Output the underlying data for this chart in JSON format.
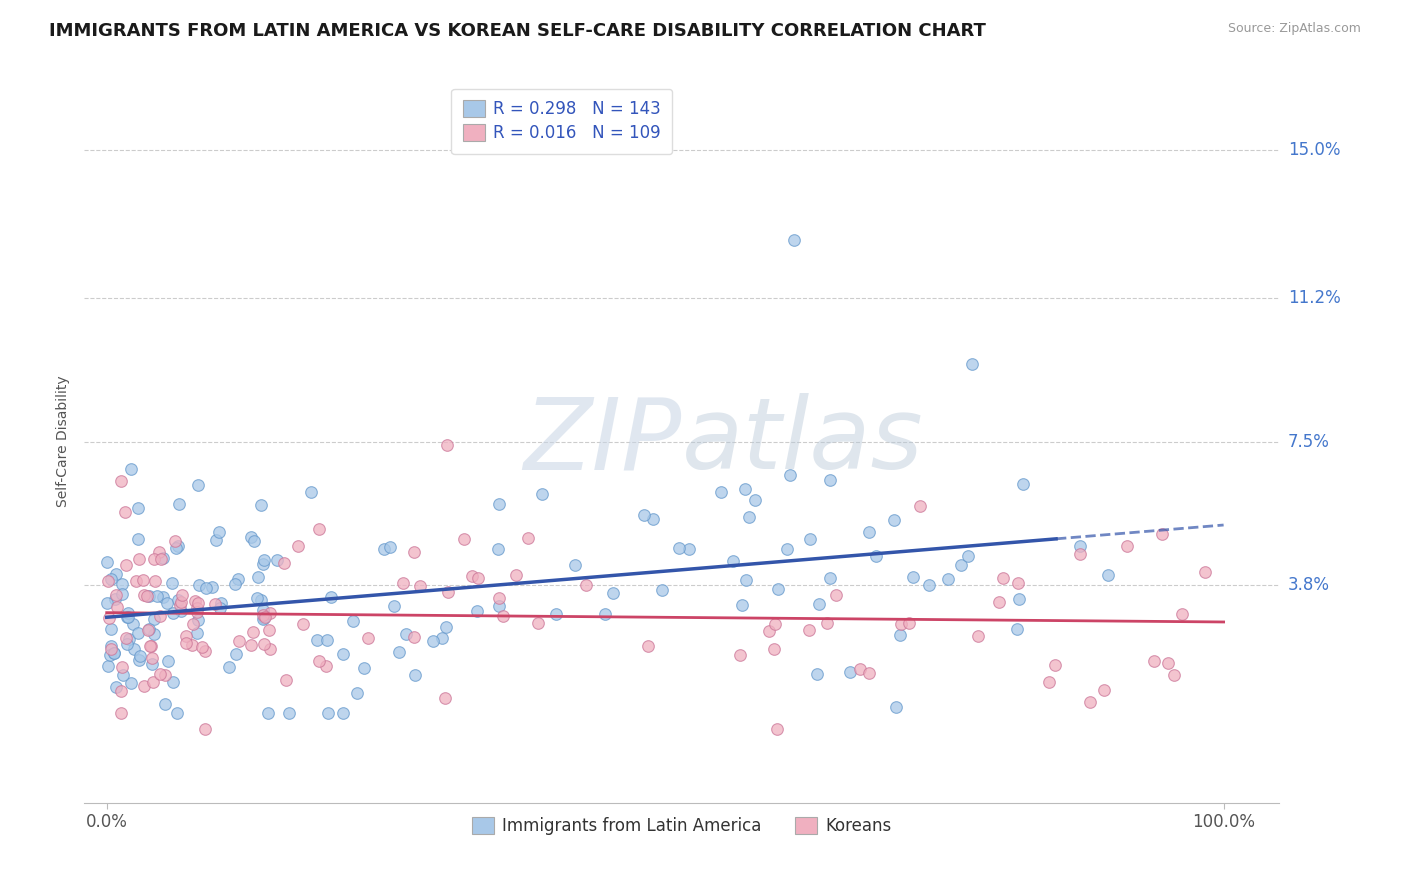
{
  "title": "IMMIGRANTS FROM LATIN AMERICA VS KOREAN SELF-CARE DISABILITY CORRELATION CHART",
  "source": "Source: ZipAtlas.com",
  "ylabel": "Self-Care Disability",
  "legend_label1": "Immigrants from Latin America",
  "legend_label2": "Koreans",
  "R1": 0.298,
  "N1": 143,
  "R2": 0.016,
  "N2": 109,
  "color1_face": "#a8c8e8",
  "color1_edge": "#6699cc",
  "color2_face": "#f0b0c0",
  "color2_edge": "#cc7799",
  "line_color1": "#3355aa",
  "line_color2": "#cc4466",
  "ytick_labels": [
    "15.0%",
    "11.2%",
    "7.5%",
    "3.8%"
  ],
  "ytick_values": [
    0.15,
    0.112,
    0.075,
    0.038
  ],
  "xtick_labels": [
    "0.0%",
    "100.0%"
  ],
  "xtick_values": [
    0.0,
    1.0
  ],
  "xmin": -0.02,
  "xmax": 1.05,
  "ymin": -0.018,
  "ymax": 0.168,
  "legend_label1_patch": "#a8c8e8",
  "legend_label2_patch": "#f0b0c0",
  "watermark_color": "#c8d5e5",
  "title_fontsize": 13,
  "tick_fontsize": 12,
  "legend_fontsize": 12,
  "background_color": "#ffffff",
  "grid_color": "#cccccc",
  "right_label_color": "#4477cc",
  "legend_number_color": "#3355bb",
  "legend_text_color": "#333333"
}
